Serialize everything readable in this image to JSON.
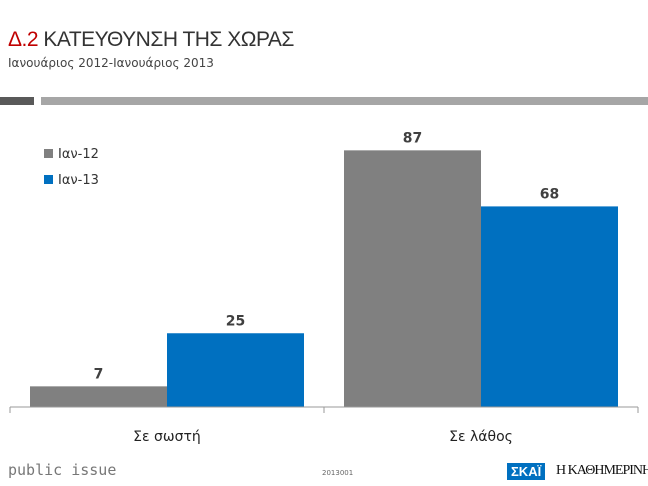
{
  "header": {
    "number": "Δ.2",
    "title": "ΚΑΤΕΥΘΥΝΣΗ  ΤΗΣ ΧΩΡΑΣ",
    "subtitle": "Ιανουάριος 2012-Ιανουάριος 2013"
  },
  "footer": {
    "brand": "public issue",
    "code": "2013001",
    "logo1": "ΣΚΑΪ",
    "logo2": "Η ΚΑΘΗΜΕΡΙΝΗ"
  },
  "chart_data": {
    "type": "bar",
    "categories": [
      "Σε σωστή",
      "Σε λάθος"
    ],
    "series": [
      {
        "name": "Ιαν-12",
        "color": "#808080",
        "values": [
          7,
          87
        ]
      },
      {
        "name": "Ιαν-13",
        "color": "#0070c0",
        "values": [
          25,
          68
        ]
      }
    ],
    "ylim": [
      0,
      100
    ],
    "legend": "top-left",
    "grid": false
  }
}
